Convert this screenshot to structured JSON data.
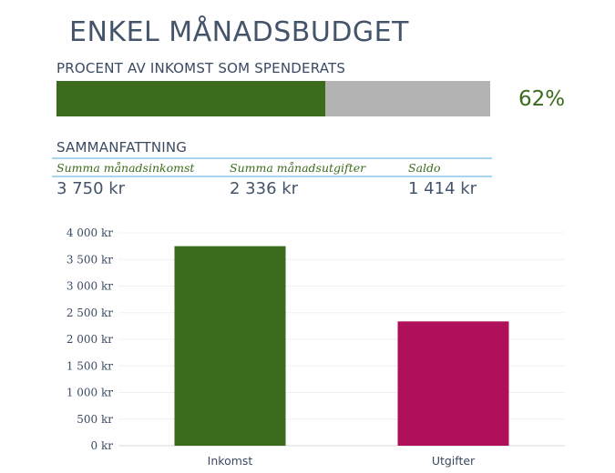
{
  "header": {
    "title": "ENKEL MÅNADSBUDGET",
    "progress_label": "PROCENT AV INKOMST SOM SPENDERATS",
    "progress_fraction": 0.62,
    "progress_text": "62%"
  },
  "summary": {
    "heading": "SAMMANFATTNING",
    "columns": [
      {
        "label": "Summa månadsinkomst",
        "value": "3 750 kr"
      },
      {
        "label": "Summa månadsutgifter",
        "value": "2 336 kr"
      },
      {
        "label": "Saldo",
        "value": "1 414 kr"
      }
    ]
  },
  "colors": {
    "income": "#3b6b1c",
    "expenses": "#b0105a",
    "remaining": "#b3b3b3"
  },
  "chart_data": {
    "type": "bar",
    "title": "",
    "xlabel": "",
    "ylabel": "",
    "categories": [
      "Inkomst",
      "Utgifter"
    ],
    "values": [
      3750,
      2336
    ],
    "bar_colors": [
      "#3b6b1c",
      "#b0105a"
    ],
    "ylim": [
      0,
      4000
    ],
    "y_ticks": [
      0,
      500,
      1000,
      1500,
      2000,
      2500,
      3000,
      3500,
      4000
    ],
    "y_tick_labels": [
      "0 kr",
      "500 kr",
      "1 000 kr",
      "1 500 kr",
      "2 000 kr",
      "2 500 kr",
      "3 000 kr",
      "3 500 kr",
      "4 000 kr"
    ],
    "grid": true,
    "legend": "none"
  }
}
